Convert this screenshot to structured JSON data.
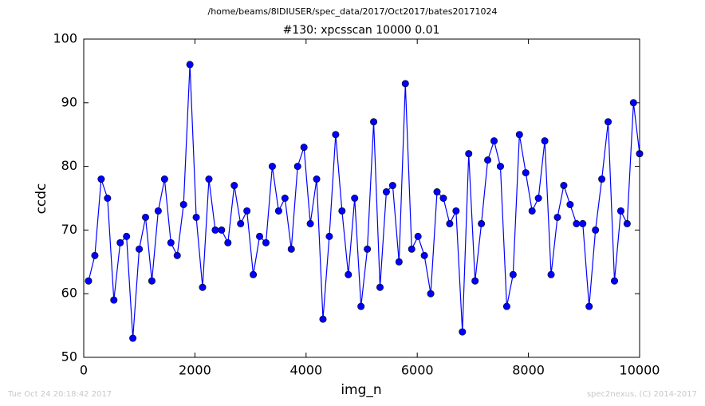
{
  "chart_data": {
    "type": "line",
    "suptitle": "/home/beams/8IDIUSER/spec_data/2017/Oct2017/bates20171024",
    "title": "#130: xpcsscan 10000 0.01",
    "x_label": "img_n",
    "y_label": "ccdc",
    "footer_left": "Tue Oct 24 20:18:42 2017",
    "footer_right": "spec2nexus, (C) 2014-2017",
    "x": [
      86,
      200,
      314,
      428,
      542,
      656,
      770,
      884,
      998,
      1112,
      1226,
      1340,
      1454,
      1568,
      1682,
      1796,
      1910,
      2024,
      2138,
      2252,
      2366,
      2480,
      2594,
      2708,
      2822,
      2936,
      3050,
      3164,
      3278,
      3392,
      3506,
      3620,
      3734,
      3848,
      3962,
      4076,
      4190,
      4304,
      4418,
      4532,
      4646,
      4760,
      4874,
      4988,
      5102,
      5216,
      5330,
      5444,
      5558,
      5672,
      5786,
      5900,
      6014,
      6128,
      6242,
      6356,
      6470,
      6584,
      6698,
      6812,
      6926,
      7040,
      7154,
      7268,
      7382,
      7496,
      7610,
      7724,
      7838,
      7952,
      8066,
      8180,
      8294,
      8408,
      8522,
      8636,
      8750,
      8864,
      8978,
      9092,
      9206,
      9320,
      9434,
      9548,
      9662,
      9776,
      9890,
      10000
    ],
    "series": [
      {
        "color": "#0000ff",
        "values": [
          62,
          66,
          78,
          75,
          59,
          68,
          69,
          53,
          67,
          72,
          62,
          73,
          78,
          68,
          66,
          74,
          96,
          72,
          61,
          78,
          70,
          70,
          68,
          77,
          71,
          73,
          63,
          69,
          68,
          80,
          73,
          75,
          67,
          80,
          83,
          71,
          78,
          56,
          69,
          85,
          73,
          63,
          75,
          58,
          67,
          87,
          61,
          76,
          77,
          65,
          93,
          67,
          69,
          66,
          60,
          76,
          75,
          71,
          73,
          54,
          82,
          62,
          71,
          81,
          84,
          80,
          58,
          63,
          85,
          79,
          73,
          75,
          84,
          63,
          72,
          77,
          74,
          71,
          71,
          58,
          70,
          78,
          87,
          62,
          73,
          71,
          90,
          82
        ]
      }
    ],
    "xlim": [
      0,
      10000
    ],
    "xticks": [
      0,
      2000,
      4000,
      6000,
      8000,
      10000
    ],
    "ylim": [
      50,
      100
    ],
    "yticks": [
      50,
      60,
      70,
      80,
      90,
      100
    ]
  }
}
